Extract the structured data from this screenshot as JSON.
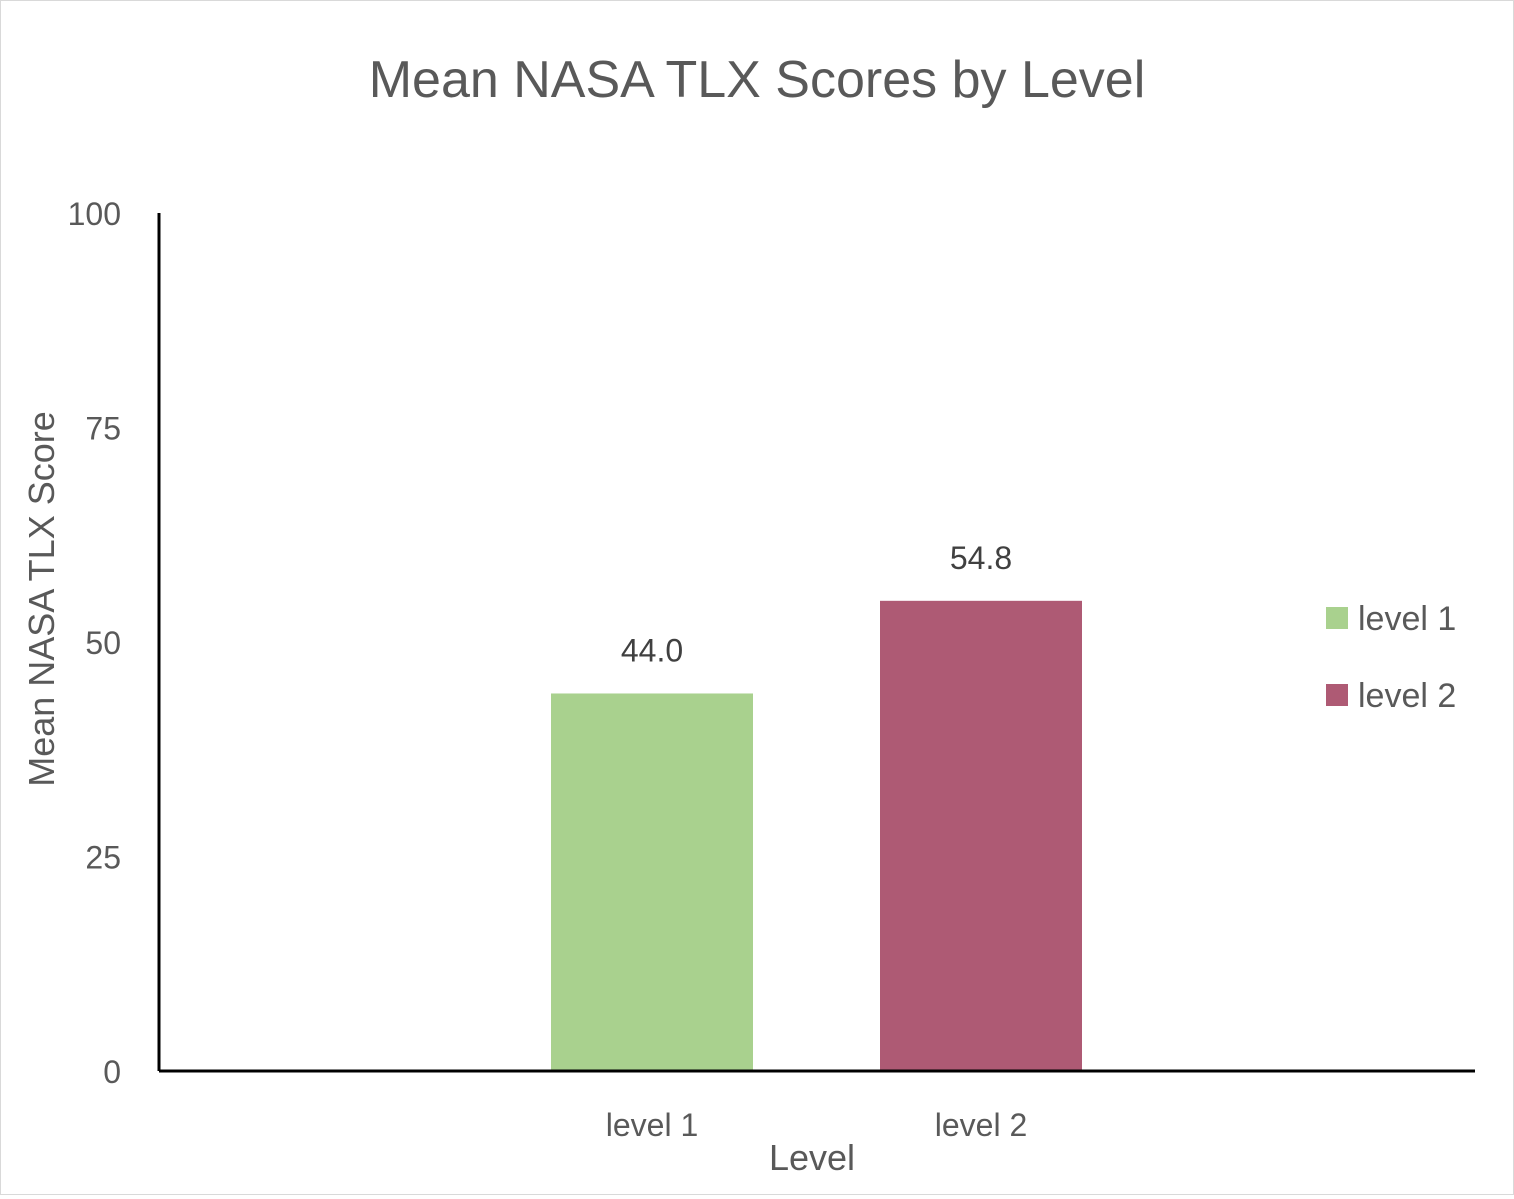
{
  "chart_data": {
    "type": "bar",
    "title": "Mean NASA TLX Scores by Level",
    "xlabel": "Level",
    "ylabel": "Mean NASA TLX Score",
    "categories": [
      "level 1",
      "level 2"
    ],
    "values": [
      44.0,
      54.8
    ],
    "data_labels": [
      "44.0",
      "54.8"
    ],
    "colors": [
      "#a9d18e",
      "#ae5a74"
    ],
    "ylim": [
      0,
      100
    ],
    "yticks": [
      0,
      25,
      50,
      75,
      100
    ],
    "ytick_labels": [
      "0",
      "25",
      "50",
      "75",
      "100"
    ],
    "grid": false,
    "legend": {
      "position": "right",
      "entries": [
        "level 1",
        "level 2"
      ]
    },
    "axis_color": "#000000",
    "text_color": "#595959",
    "label_color": "#404040"
  }
}
